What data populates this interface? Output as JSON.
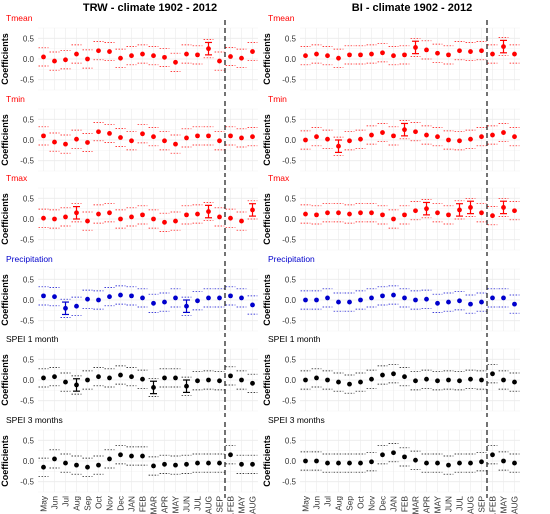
{
  "figure": {
    "columns": [
      {
        "title": "TRW - climate 1902 - 2012"
      },
      {
        "title": "BI - climate 1902 - 2012"
      }
    ],
    "row_titles": [
      "Tmean",
      "Tmin",
      "Tmax",
      "Precipitation",
      "SPEI 1 month",
      "SPEI 3 months"
    ],
    "y_axis_label": "Coefficients",
    "x_tick_labels": [
      "May",
      "Jun",
      "Jul",
      "Aug",
      "Sep",
      "Oct",
      "Nov",
      "Dec",
      "JAN",
      "FEB",
      "MAR",
      "APR",
      "MAY",
      "JUN",
      "JUL",
      "AUG",
      "SEP",
      "dec...FEB",
      "MAR...MAY",
      "JUN...AUG"
    ],
    "y_tick_labels": [
      "0.5",
      "0.0",
      "-0.5"
    ]
  },
  "colors": {
    "temperature": "#ff0000",
    "precipitation": "#0000cc",
    "spei": "#000000",
    "grid": "#ebebeb"
  },
  "chart_data": [
    {
      "type": "scatter",
      "title": "Tmean",
      "column": "TRW - climate 1902 - 2012",
      "ylabel": "Coefficients",
      "ylim": [
        -0.75,
        0.75
      ],
      "yticks": [
        -0.5,
        0,
        0.5
      ],
      "color_key": "temperature",
      "values": [
        0.05,
        -0.05,
        -0.02,
        0.12,
        0.0,
        0.2,
        0.18,
        0.02,
        0.08,
        0.12,
        0.08,
        0.04,
        -0.08,
        0.12,
        0.1,
        0.25,
        -0.05,
        0.06,
        0.02,
        0.18
      ],
      "significant": [
        false,
        false,
        false,
        false,
        false,
        false,
        false,
        false,
        false,
        false,
        false,
        false,
        false,
        false,
        false,
        true,
        false,
        false,
        false,
        false
      ]
    },
    {
      "type": "scatter",
      "title": "Tmean",
      "column": "BI - climate 1902 - 2012",
      "ylabel": "Coefficients",
      "ylim": [
        -0.75,
        0.75
      ],
      "yticks": [
        -0.5,
        0,
        0.5
      ],
      "color_key": "temperature",
      "values": [
        0.08,
        0.12,
        0.08,
        0.02,
        0.1,
        0.1,
        0.12,
        0.15,
        0.08,
        0.1,
        0.28,
        0.22,
        0.14,
        0.1,
        0.2,
        0.18,
        0.2,
        0.12,
        0.3,
        0.12
      ],
      "significant": [
        false,
        false,
        false,
        false,
        false,
        false,
        false,
        false,
        false,
        false,
        true,
        false,
        false,
        false,
        false,
        false,
        false,
        false,
        true,
        false
      ]
    },
    {
      "type": "scatter",
      "title": "Tmin",
      "column": "TRW - climate 1902 - 2012",
      "ylabel": "Coefficients",
      "ylim": [
        -0.75,
        0.75
      ],
      "yticks": [
        -0.5,
        0,
        0.5
      ],
      "color_key": "temperature",
      "values": [
        0.1,
        -0.05,
        -0.1,
        0.02,
        -0.06,
        0.2,
        0.16,
        0.06,
        -0.02,
        0.15,
        0.08,
        -0.02,
        -0.1,
        0.05,
        0.1,
        0.1,
        -0.02,
        0.1,
        0.05,
        0.08
      ],
      "significant": [
        false,
        false,
        false,
        false,
        false,
        false,
        false,
        false,
        false,
        false,
        false,
        false,
        false,
        false,
        false,
        false,
        false,
        false,
        false,
        false
      ]
    },
    {
      "type": "scatter",
      "title": "Tmin",
      "column": "BI - climate 1902 - 2012",
      "ylabel": "Coefficients",
      "ylim": [
        -0.75,
        0.75
      ],
      "yticks": [
        -0.5,
        0,
        0.5
      ],
      "color_key": "temperature",
      "values": [
        0.0,
        0.08,
        0.02,
        -0.15,
        -0.02,
        0.02,
        0.12,
        0.18,
        0.1,
        0.25,
        0.2,
        0.12,
        0.08,
        0.0,
        -0.02,
        0.02,
        0.08,
        0.12,
        0.18,
        0.08
      ],
      "significant": [
        false,
        false,
        false,
        true,
        false,
        false,
        false,
        false,
        false,
        true,
        false,
        false,
        false,
        false,
        false,
        false,
        false,
        false,
        false,
        false
      ]
    },
    {
      "type": "scatter",
      "title": "Tmax",
      "column": "TRW - climate 1902 - 2012",
      "ylabel": "Coefficients",
      "ylim": [
        -0.75,
        0.75
      ],
      "yticks": [
        -0.5,
        0,
        0.5
      ],
      "color_key": "temperature",
      "values": [
        0.02,
        0.0,
        0.05,
        0.15,
        -0.05,
        0.12,
        0.15,
        0.0,
        0.05,
        0.1,
        0.0,
        -0.08,
        -0.05,
        0.1,
        0.12,
        0.18,
        0.05,
        0.02,
        -0.05,
        0.22
      ],
      "significant": [
        false,
        false,
        false,
        true,
        false,
        false,
        false,
        false,
        false,
        false,
        false,
        false,
        false,
        false,
        false,
        true,
        false,
        false,
        false,
        true
      ]
    },
    {
      "type": "scatter",
      "title": "Tmax",
      "column": "BI - climate 1902 - 2012",
      "ylabel": "Coefficients",
      "ylim": [
        -0.75,
        0.75
      ],
      "yticks": [
        -0.5,
        0,
        0.5
      ],
      "color_key": "temperature",
      "values": [
        0.12,
        0.1,
        0.15,
        0.15,
        0.12,
        0.15,
        0.15,
        0.1,
        0.0,
        0.1,
        0.2,
        0.25,
        0.15,
        0.1,
        0.22,
        0.28,
        0.15,
        0.08,
        0.28,
        0.2
      ],
      "significant": [
        false,
        false,
        false,
        false,
        false,
        false,
        false,
        false,
        false,
        false,
        false,
        true,
        false,
        false,
        true,
        true,
        false,
        false,
        true,
        false
      ]
    },
    {
      "type": "scatter",
      "title": "Precipitation",
      "column": "TRW - climate 1902 - 2012",
      "ylabel": "Coefficients",
      "ylim": [
        -0.75,
        0.75
      ],
      "yticks": [
        -0.5,
        0,
        0.5
      ],
      "color_key": "precipitation",
      "values": [
        0.1,
        0.08,
        -0.2,
        -0.15,
        0.02,
        0.0,
        0.08,
        0.12,
        0.1,
        0.05,
        -0.08,
        -0.05,
        0.05,
        -0.15,
        -0.02,
        0.05,
        0.05,
        0.1,
        0.05,
        -0.12
      ],
      "significant": [
        false,
        false,
        true,
        false,
        false,
        false,
        false,
        false,
        false,
        false,
        false,
        false,
        false,
        true,
        false,
        false,
        false,
        false,
        false,
        false
      ]
    },
    {
      "type": "scatter",
      "title": "Precipitation",
      "column": "BI - climate 1902 - 2012",
      "ylabel": "Coefficients",
      "ylim": [
        -0.75,
        0.75
      ],
      "yticks": [
        -0.5,
        0,
        0.5
      ],
      "color_key": "precipitation",
      "values": [
        0.0,
        0.0,
        0.05,
        -0.05,
        -0.05,
        0.0,
        0.05,
        0.1,
        0.12,
        0.05,
        0.0,
        0.02,
        -0.08,
        -0.05,
        -0.02,
        -0.1,
        -0.05,
        0.05,
        0.05,
        -0.1
      ],
      "significant": [
        false,
        false,
        false,
        false,
        false,
        false,
        false,
        false,
        false,
        false,
        false,
        false,
        false,
        false,
        false,
        false,
        false,
        false,
        false,
        false
      ]
    },
    {
      "type": "scatter",
      "title": "SPEI 1 month",
      "column": "TRW - climate 1902 - 2012",
      "ylabel": "Coefficients",
      "ylim": [
        -0.75,
        0.75
      ],
      "yticks": [
        -0.5,
        0,
        0.5
      ],
      "color_key": "spei",
      "values": [
        0.05,
        0.08,
        -0.05,
        -0.12,
        0.0,
        0.08,
        0.05,
        0.12,
        0.08,
        0.02,
        -0.18,
        0.05,
        0.05,
        -0.15,
        -0.02,
        0.0,
        -0.02,
        0.1,
        0.0,
        -0.08
      ],
      "significant": [
        false,
        false,
        false,
        true,
        false,
        false,
        false,
        false,
        false,
        false,
        true,
        false,
        false,
        true,
        false,
        false,
        false,
        false,
        false,
        false
      ]
    },
    {
      "type": "scatter",
      "title": "SPEI 1 month",
      "column": "BI - climate 1902 - 2012",
      "ylabel": "Coefficients",
      "ylim": [
        -0.75,
        0.75
      ],
      "yticks": [
        -0.5,
        0,
        0.5
      ],
      "color_key": "spei",
      "values": [
        0.0,
        0.05,
        0.0,
        -0.05,
        -0.1,
        -0.05,
        0.02,
        0.12,
        0.15,
        0.08,
        -0.02,
        0.02,
        -0.02,
        0.0,
        -0.02,
        0.02,
        0.0,
        0.15,
        0.0,
        -0.05
      ],
      "significant": [
        false,
        false,
        false,
        false,
        false,
        false,
        false,
        false,
        false,
        false,
        false,
        false,
        false,
        false,
        false,
        false,
        false,
        false,
        false,
        false
      ]
    },
    {
      "type": "scatter",
      "title": "SPEI 3 months",
      "column": "TRW - climate 1902 - 2012",
      "ylabel": "Coefficients",
      "ylim": [
        -0.75,
        0.75
      ],
      "yticks": [
        -0.5,
        0,
        0.5
      ],
      "color_key": "spei",
      "values": [
        -0.15,
        0.05,
        -0.05,
        -0.1,
        -0.15,
        -0.1,
        0.05,
        0.15,
        0.12,
        0.12,
        -0.12,
        -0.08,
        -0.1,
        -0.08,
        -0.05,
        -0.05,
        -0.05,
        0.15,
        -0.08,
        -0.08
      ],
      "significant": [
        false,
        false,
        false,
        false,
        false,
        false,
        false,
        false,
        false,
        false,
        false,
        false,
        false,
        false,
        false,
        false,
        false,
        false,
        false,
        false
      ]
    },
    {
      "type": "scatter",
      "title": "SPEI 3 months",
      "column": "BI - climate 1902 - 2012",
      "ylabel": "Coefficients",
      "ylim": [
        -0.75,
        0.75
      ],
      "yticks": [
        -0.5,
        0,
        0.5
      ],
      "color_key": "spei",
      "values": [
        0.0,
        0.0,
        -0.05,
        -0.05,
        -0.05,
        -0.05,
        -0.02,
        0.15,
        0.2,
        0.1,
        0.02,
        -0.05,
        -0.05,
        -0.1,
        -0.05,
        -0.05,
        -0.02,
        0.15,
        0.0,
        -0.05
      ],
      "significant": [
        false,
        false,
        false,
        false,
        false,
        false,
        false,
        false,
        false,
        false,
        false,
        false,
        false,
        false,
        false,
        false,
        false,
        false,
        false,
        false
      ]
    }
  ]
}
